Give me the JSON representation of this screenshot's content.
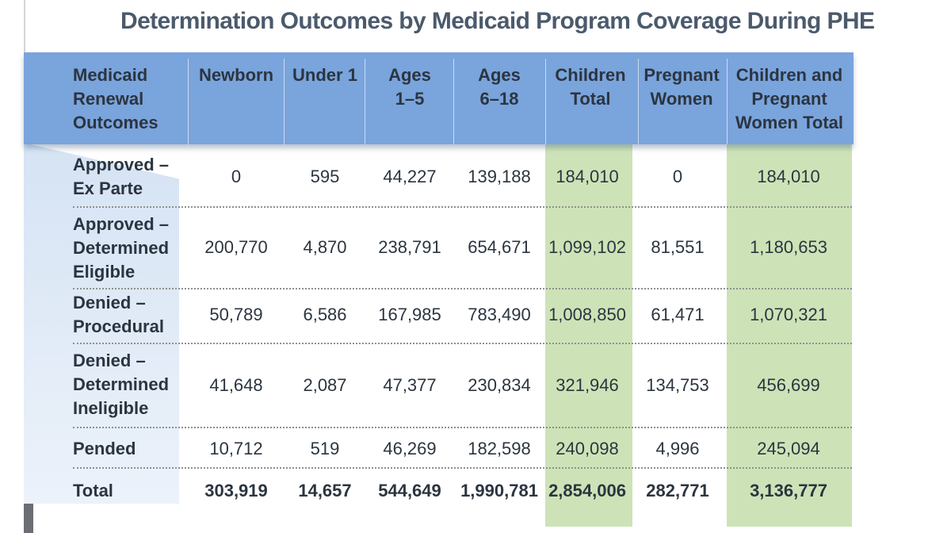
{
  "title": "Determination Outcomes by Medicaid Program Coverage During PHE",
  "header": {
    "row_header": [
      "Medicaid",
      "Renewal",
      "Outcomes"
    ],
    "columns": [
      {
        "key": "newborn",
        "lines": [
          "Newborn"
        ]
      },
      {
        "key": "under1",
        "lines": [
          "Under 1"
        ]
      },
      {
        "key": "ages1_5",
        "lines": [
          "Ages",
          "1–5"
        ]
      },
      {
        "key": "ages6_18",
        "lines": [
          "Ages",
          "6–18"
        ]
      },
      {
        "key": "children_total",
        "lines": [
          "Children",
          "Total"
        ]
      },
      {
        "key": "pregnant_women",
        "lines": [
          "Pregnant",
          "Women"
        ]
      },
      {
        "key": "children_pregnant_total",
        "lines": [
          "Children and",
          "Pregnant",
          "Women Total"
        ]
      }
    ]
  },
  "rows": [
    {
      "label": [
        "Approved –",
        "Ex Parte"
      ],
      "values": [
        "0",
        "595",
        "44,227",
        "139,188",
        "184,010",
        "0",
        "184,010"
      ]
    },
    {
      "label": [
        "Approved –",
        "Determined",
        "Eligible"
      ],
      "values": [
        "200,770",
        "4,870",
        "238,791",
        "654,671",
        "1,099,102",
        "81,551",
        "1,180,653"
      ]
    },
    {
      "label": [
        "Denied –",
        "Procedural"
      ],
      "values": [
        "50,789",
        "6,586",
        "167,985",
        "783,490",
        "1,008,850",
        "61,471",
        "1,070,321"
      ]
    },
    {
      "label": [
        "Denied –",
        "Determined",
        "Ineligible"
      ],
      "values": [
        "41,648",
        "2,087",
        "47,377",
        "230,834",
        "321,946",
        "134,753",
        "456,699"
      ]
    },
    {
      "label": [
        "Pended"
      ],
      "values": [
        "10,712",
        "519",
        "46,269",
        "182,598",
        "240,098",
        "4,996",
        "245,094"
      ]
    },
    {
      "label": [
        "Total"
      ],
      "values": [
        "303,919",
        "14,657",
        "544,649",
        "1,990,781",
        "2,854,006",
        "282,771",
        "3,136,777"
      ]
    }
  ],
  "colors": {
    "header_band": "#7aa4dc",
    "highlight_column": "#cde3b7",
    "title_text": "#4b5a6c",
    "body_text": "#2b3540"
  }
}
